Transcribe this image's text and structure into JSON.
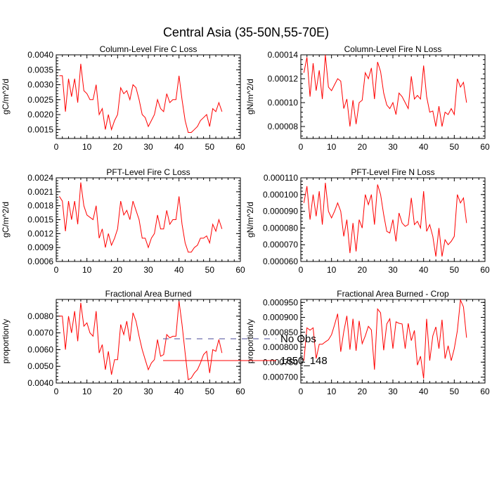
{
  "figure": {
    "title": "Central Asia (35-50N,55-70E)"
  },
  "legend": {
    "entries": [
      {
        "label": "No Obs",
        "color": "#4a4a9a",
        "style": "dashed"
      },
      {
        "label": "1850_148",
        "color": "#ff0000",
        "style": "solid"
      }
    ]
  },
  "chart_data": [
    {
      "type": "line",
      "title": "Column-Level Fire C Loss",
      "ylabel": "gC/m^2/d",
      "xlim": [
        0,
        60
      ],
      "ylim": [
        0.0012,
        0.004
      ],
      "xticks": [
        0,
        10,
        20,
        30,
        40,
        50,
        60
      ],
      "xtick_labels": [
        "0",
        "10",
        "20",
        "30",
        "40",
        "50",
        "60"
      ],
      "yticks": [
        0.0015,
        0.002,
        0.0025,
        0.003,
        0.0035,
        0.004
      ],
      "ytick_labels": [
        "0.0015",
        "0.0020",
        "0.0025",
        "0.0030",
        "0.0035",
        "0.0040"
      ],
      "series": [
        {
          "name": "1850_148",
          "color": "#ff0000",
          "x": [
            1,
            2,
            3,
            4,
            5,
            6,
            7,
            8,
            9,
            10,
            11,
            12,
            13,
            14,
            15,
            16,
            17,
            18,
            19,
            20,
            21,
            22,
            23,
            24,
            25,
            26,
            27,
            28,
            29,
            30,
            31,
            32,
            33,
            34,
            35,
            36,
            37,
            38,
            39,
            40,
            41,
            42,
            43,
            44,
            45,
            46,
            47,
            48,
            49,
            50,
            51,
            52,
            53,
            54
          ],
          "y": [
            0.0033,
            0.0033,
            0.0021,
            0.0032,
            0.0026,
            0.0032,
            0.0024,
            0.0037,
            0.0028,
            0.0027,
            0.0025,
            0.0025,
            0.003,
            0.002,
            0.0022,
            0.0015,
            0.002,
            0.0015,
            0.0018,
            0.002,
            0.0029,
            0.0027,
            0.0028,
            0.0025,
            0.003,
            0.0029,
            0.0025,
            0.002,
            0.0019,
            0.0016,
            0.0018,
            0.002,
            0.0025,
            0.0022,
            0.0021,
            0.0027,
            0.0024,
            0.0025,
            0.0025,
            0.0033,
            0.0025,
            0.0018,
            0.0014,
            0.0014,
            0.0015,
            0.0016,
            0.0018,
            0.0019,
            0.002,
            0.0016,
            0.0022,
            0.0021,
            0.0024,
            0.0021
          ]
        }
      ]
    },
    {
      "type": "line",
      "title": "Column-Level Fire N Loss",
      "ylabel": "gN/m^2/d",
      "xlim": [
        0,
        60
      ],
      "ylim": [
        7e-05,
        0.00014
      ],
      "xticks": [
        0,
        10,
        20,
        30,
        40,
        50,
        60
      ],
      "xtick_labels": [
        "0",
        "10",
        "20",
        "30",
        "40",
        "50",
        "60"
      ],
      "yticks": [
        8e-05,
        0.0001,
        0.00012,
        0.00014
      ],
      "ytick_labels": [
        "0.00008",
        "0.00010",
        "0.00012",
        "0.00014"
      ],
      "series": [
        {
          "name": "1850_148",
          "color": "#ff0000",
          "x": [
            1,
            2,
            3,
            4,
            5,
            6,
            7,
            8,
            9,
            10,
            11,
            12,
            13,
            14,
            15,
            16,
            17,
            18,
            19,
            20,
            21,
            22,
            23,
            24,
            25,
            26,
            27,
            28,
            29,
            30,
            31,
            32,
            33,
            34,
            35,
            36,
            37,
            38,
            39,
            40,
            41,
            42,
            43,
            44,
            45,
            46,
            47,
            48,
            49,
            50,
            51,
            52,
            53,
            54
          ],
          "y": [
            0.000125,
            0.000138,
            0.000105,
            0.000133,
            0.00011,
            0.000127,
            0.000103,
            0.00014,
            0.000113,
            0.00011,
            0.000115,
            0.00012,
            0.000118,
            9.5e-05,
            0.000103,
            8e-05,
            0.000102,
            8.2e-05,
            0.0001,
            0.000102,
            0.000125,
            0.00012,
            0.000129,
            0.000103,
            0.000134,
            0.000126,
            0.000108,
            9.8e-05,
            9.5e-05,
            0.0001,
            9e-05,
            0.000108,
            0.000105,
            0.0001,
            9.5e-05,
            0.000122,
            0.000103,
            0.000106,
            0.000103,
            0.000131,
            0.000105,
            9.2e-05,
            9.3e-05,
            8e-05,
            9.7e-05,
            8e-05,
            9.2e-05,
            9e-05,
            9.5e-05,
            9e-05,
            0.00012,
            0.000113,
            0.000117,
            0.0001
          ]
        }
      ]
    },
    {
      "type": "line",
      "title": "PFT-Level Fire C Loss",
      "ylabel": "gC/m^2/d",
      "xlim": [
        0,
        60
      ],
      "ylim": [
        0.0006,
        0.0024
      ],
      "xticks": [
        0,
        10,
        20,
        30,
        40,
        50,
        60
      ],
      "xtick_labels": [
        "0",
        "10",
        "20",
        "30",
        "40",
        "50",
        "60"
      ],
      "yticks": [
        0.0006,
        0.0009,
        0.0012,
        0.0015,
        0.0018,
        0.0021,
        0.0024
      ],
      "ytick_labels": [
        "0.0006",
        "0.0009",
        "0.0012",
        "0.0015",
        "0.0018",
        "0.0021",
        "0.0024"
      ],
      "series": [
        {
          "name": "1850_148",
          "color": "#ff0000",
          "x": [
            1,
            2,
            3,
            4,
            5,
            6,
            7,
            8,
            9,
            10,
            11,
            12,
            13,
            14,
            15,
            16,
            17,
            18,
            19,
            20,
            21,
            22,
            23,
            24,
            25,
            26,
            27,
            28,
            29,
            30,
            31,
            32,
            33,
            34,
            35,
            36,
            37,
            38,
            39,
            40,
            41,
            42,
            43,
            44,
            45,
            46,
            47,
            48,
            49,
            50,
            51,
            52,
            53,
            54
          ],
          "y": [
            0.002,
            0.0019,
            0.00125,
            0.0019,
            0.0015,
            0.0019,
            0.0014,
            0.0023,
            0.0018,
            0.0016,
            0.00155,
            0.0015,
            0.0018,
            0.0011,
            0.0013,
            0.0009,
            0.0012,
            0.00095,
            0.0011,
            0.0013,
            0.0019,
            0.0016,
            0.0017,
            0.0015,
            0.0019,
            0.0017,
            0.0015,
            0.0011,
            0.0011,
            0.0009,
            0.0011,
            0.0012,
            0.0016,
            0.0013,
            0.0013,
            0.0017,
            0.0014,
            0.0015,
            0.0015,
            0.002,
            0.0014,
            0.001,
            0.0008,
            0.0008,
            0.0009,
            0.00095,
            0.0011,
            0.0011,
            0.00115,
            0.001,
            0.0014,
            0.00125,
            0.0015,
            0.0013
          ]
        }
      ]
    },
    {
      "type": "line",
      "title": "PFT-Level Fire N Loss",
      "ylabel": "gN/m^2/d",
      "xlim": [
        0,
        60
      ],
      "ylim": [
        6e-05,
        0.00011
      ],
      "xticks": [
        0,
        10,
        20,
        30,
        40,
        50,
        60
      ],
      "xtick_labels": [
        "0",
        "10",
        "20",
        "30",
        "40",
        "50",
        "60"
      ],
      "yticks": [
        6e-05,
        7e-05,
        8e-05,
        9e-05,
        0.0001,
        0.00011
      ],
      "ytick_labels": [
        "0.000060",
        "0.000070",
        "0.000080",
        "0.000090",
        "0.000100",
        "0.000110"
      ],
      "series": [
        {
          "name": "1850_148",
          "color": "#ff0000",
          "x": [
            1,
            2,
            3,
            4,
            5,
            6,
            7,
            8,
            9,
            10,
            11,
            12,
            13,
            14,
            15,
            16,
            17,
            18,
            19,
            20,
            21,
            22,
            23,
            24,
            25,
            26,
            27,
            28,
            29,
            30,
            31,
            32,
            33,
            34,
            35,
            36,
            37,
            38,
            39,
            40,
            41,
            42,
            43,
            44,
            45,
            46,
            47,
            48,
            49,
            50,
            51,
            52,
            53,
            54
          ],
          "y": [
            9.5e-05,
            0.000105,
            8.5e-05,
            0.0001,
            8.7e-05,
            0.000102,
            8.2e-05,
            0.000107,
            9e-05,
            8.6e-05,
            9e-05,
            9.5e-05,
            9e-05,
            7.5e-05,
            8.5e-05,
            6.5e-05,
            8.3e-05,
            6.6e-05,
            8.5e-05,
            8e-05,
            0.0001,
            9.4e-05,
            0.0001,
            8.2e-05,
            0.000106,
            0.0001,
            8.8e-05,
            7.8e-05,
            7.7e-05,
            8.5e-05,
            7.2e-05,
            8.9e-05,
            8.3e-05,
            8.1e-05,
            8.2e-05,
            9.8e-05,
            8.2e-05,
            8.4e-05,
            8e-05,
            0.000102,
            7.8e-05,
            8.2e-05,
            7.5e-05,
            6.3e-05,
            8e-05,
            6.3e-05,
            7.3e-05,
            7e-05,
            7.2e-05,
            7.5e-05,
            0.0001,
            9.5e-05,
            9.8e-05,
            8.3e-05
          ]
        }
      ]
    },
    {
      "type": "line",
      "title": "Fractional Area Burned",
      "ylabel": "proportion/y",
      "xlim": [
        0,
        60
      ],
      "ylim": [
        0.004,
        0.009
      ],
      "xticks": [
        0,
        10,
        20,
        30,
        40,
        50,
        60
      ],
      "xtick_labels": [
        "0",
        "10",
        "20",
        "30",
        "40",
        "50",
        "60"
      ],
      "yticks": [
        0.004,
        0.005,
        0.006,
        0.007,
        0.008
      ],
      "ytick_labels": [
        "0.0040",
        "0.0050",
        "0.0060",
        "0.0070",
        "0.0080"
      ],
      "series": [
        {
          "name": "1850_148",
          "color": "#ff0000",
          "x": [
            1,
            2,
            3,
            4,
            5,
            6,
            7,
            8,
            9,
            10,
            11,
            12,
            13,
            14,
            15,
            16,
            17,
            18,
            19,
            20,
            21,
            22,
            23,
            24,
            25,
            26,
            27,
            28,
            29,
            30,
            31,
            32,
            33,
            34,
            35,
            36,
            37,
            38,
            39,
            40,
            41,
            42,
            43,
            44,
            45,
            46,
            47,
            48,
            49,
            50,
            51,
            52,
            53,
            54
          ],
          "y": [
            0.008,
            0.008,
            0.006,
            0.008,
            0.007,
            0.0083,
            0.0065,
            0.0088,
            0.0074,
            0.0076,
            0.007,
            0.0068,
            0.0083,
            0.0058,
            0.0063,
            0.0048,
            0.0059,
            0.0045,
            0.0054,
            0.0054,
            0.0075,
            0.0069,
            0.0077,
            0.0065,
            0.0082,
            0.0077,
            0.0068,
            0.006,
            0.0054,
            0.0048,
            0.0052,
            0.0054,
            0.0066,
            0.0056,
            0.0057,
            0.0069,
            0.0067,
            0.0068,
            0.0068,
            0.0089,
            0.0075,
            0.0058,
            0.0042,
            0.0043,
            0.0046,
            0.0048,
            0.0052,
            0.0057,
            0.0059,
            0.0046,
            0.006,
            0.0059,
            0.0066,
            0.0058
          ]
        }
      ]
    },
    {
      "type": "line",
      "title": "Fractional Area Burned - Crop",
      "ylabel": "proportion/y",
      "xlim": [
        0,
        60
      ],
      "ylim": [
        0.00068,
        0.00096
      ],
      "xticks": [
        0,
        10,
        20,
        30,
        40,
        50,
        60
      ],
      "xtick_labels": [
        "0",
        "10",
        "20",
        "30",
        "40",
        "50",
        "60"
      ],
      "yticks": [
        0.0007,
        0.00075,
        0.0008,
        0.00085,
        0.0009,
        0.00095
      ],
      "ytick_labels": [
        "0.000700",
        "0.000750",
        "0.000800",
        "0.000850",
        "0.000900",
        "0.000950"
      ],
      "series": [
        {
          "name": "1850_148",
          "color": "#ff0000",
          "x": [
            1,
            2,
            3,
            4,
            5,
            6,
            7,
            8,
            9,
            10,
            11,
            12,
            13,
            14,
            15,
            16,
            17,
            18,
            19,
            20,
            21,
            22,
            23,
            24,
            25,
            26,
            27,
            28,
            29,
            30,
            31,
            32,
            33,
            34,
            35,
            36,
            37,
            38,
            39,
            40,
            41,
            42,
            43,
            44,
            45,
            46,
            47,
            48,
            49,
            50,
            51,
            52,
            53,
            54
          ],
          "y": [
            0.000755,
            0.000865,
            0.000857,
            0.000865,
            0.000762,
            0.00081,
            0.00081,
            0.000818,
            0.000825,
            0.000842,
            0.000875,
            0.000912,
            0.000785,
            0.000852,
            0.000905,
            0.000792,
            0.000895,
            0.000788,
            0.000888,
            0.000812,
            0.000838,
            0.00087,
            0.000858,
            0.000725,
            0.000928,
            0.000915,
            0.00079,
            0.000878,
            0.000895,
            0.000795,
            0.000885,
            0.00088,
            0.000878,
            0.000795,
            0.00088,
            0.000822,
            0.000856,
            0.00074,
            0.00077,
            0.000695,
            0.000895,
            0.000755,
            0.000838,
            0.000868,
            0.000795,
            0.000892,
            0.000762,
            0.000805,
            0.000755,
            0.000795,
            0.000855,
            0.000958,
            0.000935,
            0.000832
          ]
        }
      ]
    }
  ]
}
